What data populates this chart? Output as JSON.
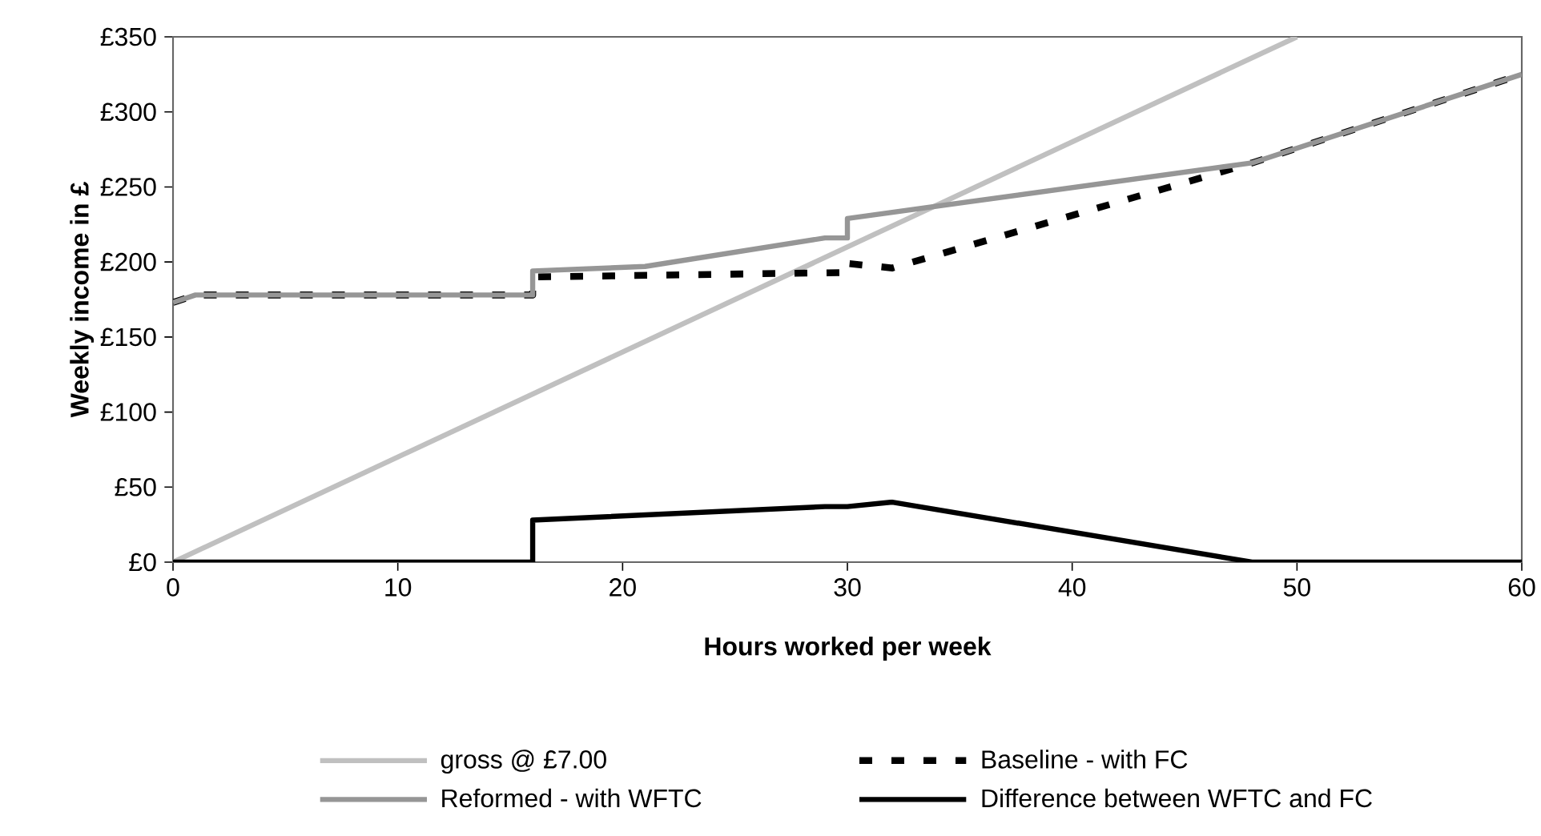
{
  "chart_data": {
    "type": "line",
    "xlabel": "Hours worked per week",
    "ylabel": "Weekly income in £",
    "xlim": [
      0,
      60
    ],
    "xticks": [
      0,
      10,
      20,
      30,
      40,
      50,
      60
    ],
    "ylim": [
      0,
      350
    ],
    "yticks": [
      {
        "value": 0,
        "label": "£0"
      },
      {
        "value": 50,
        "label": "£50"
      },
      {
        "value": 100,
        "label": "£100"
      },
      {
        "value": 150,
        "label": "£150"
      },
      {
        "value": 200,
        "label": "£200"
      },
      {
        "value": 250,
        "label": "£250"
      },
      {
        "value": 300,
        "label": "£300"
      },
      {
        "value": 350,
        "label": "£350"
      }
    ],
    "grid": false,
    "legend": "bottom",
    "series": [
      {
        "name": "gross @ £7.00",
        "color": "#c0c0c0",
        "x": [
          0,
          50
        ],
        "values": [
          0,
          350
        ]
      },
      {
        "name": "Baseline - with FC",
        "color": "#000000",
        "line_style": "dashed",
        "x": [
          0,
          1,
          16,
          16,
          30,
          30,
          32,
          48,
          60
        ],
        "values": [
          173,
          178,
          178,
          190,
          193,
          199,
          196,
          266,
          325
        ]
      },
      {
        "name": "Reformed - with WFTC",
        "color": "#969696",
        "x": [
          0,
          1,
          16,
          16,
          21,
          29,
          30,
          30,
          48,
          60
        ],
        "values": [
          173,
          178,
          178,
          194,
          197,
          216,
          216,
          229,
          266,
          325
        ]
      },
      {
        "name": "Difference between WFTC and FC",
        "color": "#000000",
        "x": [
          0,
          16,
          16,
          29,
          30,
          32,
          48,
          60
        ],
        "values": [
          0,
          0,
          28,
          37,
          37,
          40,
          0,
          0
        ]
      }
    ]
  }
}
